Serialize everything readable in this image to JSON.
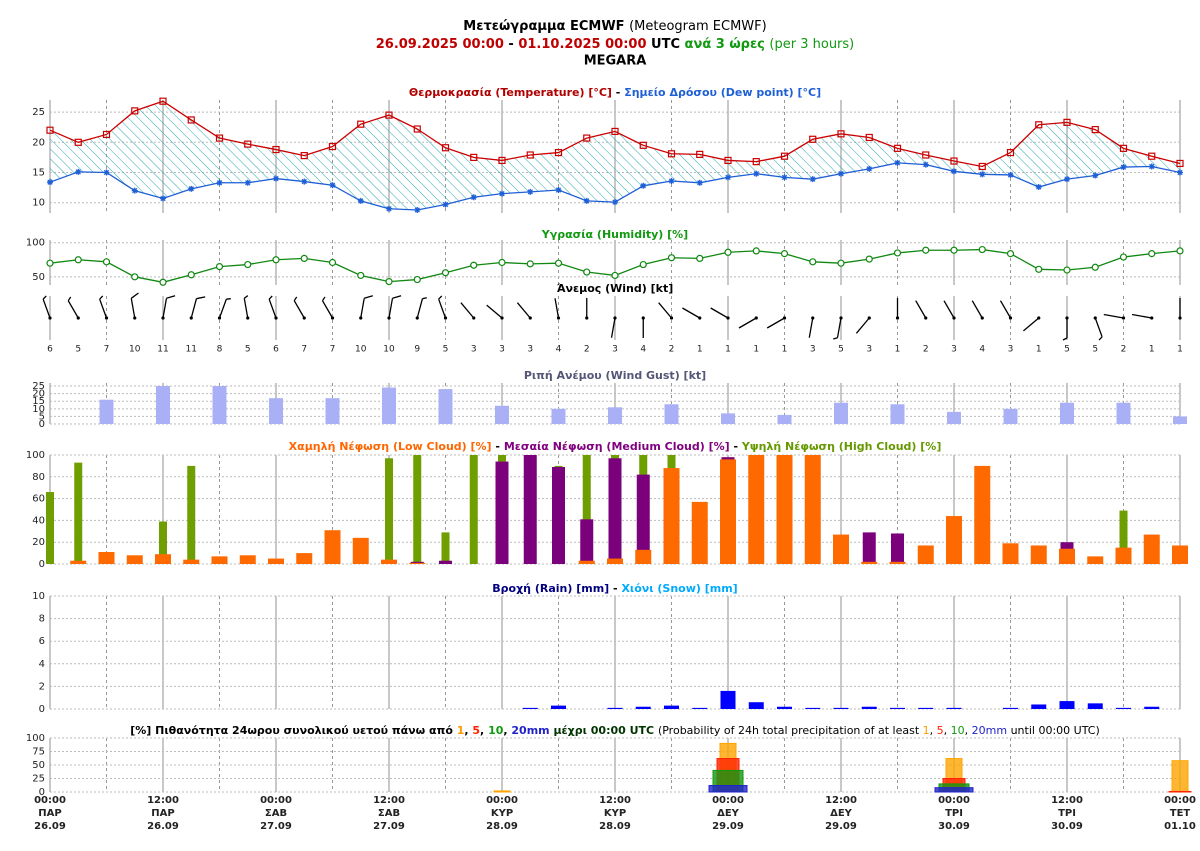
{
  "header": {
    "title_parts": [
      {
        "text": "Μετεώγραμμα ECMWF ",
        "color": "#000000",
        "bold": true
      },
      {
        "text": "(Meteogram ECMWF)",
        "color": "#000000",
        "bold": false
      }
    ],
    "line2_parts": [
      {
        "text": "26.09.2025 00:00",
        "color": "#c00000",
        "bold": true
      },
      {
        "text": " - ",
        "color": "#000000",
        "bold": true
      },
      {
        "text": "01.10.2025 00:00",
        "color": "#c00000",
        "bold": true
      },
      {
        "text": " UTC ",
        "color": "#000000",
        "bold": true
      },
      {
        "text": "ανά 3 ώρες ",
        "color": "#119911",
        "bold": true
      },
      {
        "text": "(per 3 hours)",
        "color": "#119911",
        "bold": false
      }
    ],
    "location": "MEGARA"
  },
  "time": {
    "x": [
      0,
      3,
      6,
      9,
      12,
      15,
      18,
      21,
      24,
      27,
      30,
      33,
      36,
      39,
      42,
      45,
      48,
      51,
      54,
      57,
      60,
      63,
      66,
      69,
      72,
      75,
      78,
      81,
      84,
      87,
      90,
      93,
      96,
      99,
      102,
      105,
      108,
      111,
      114,
      117,
      120
    ],
    "xlim": [
      0,
      120
    ],
    "xticks": [
      {
        "value": 0,
        "label": [
          "00:00",
          "ΠΑΡ",
          "26.09"
        ]
      },
      {
        "value": 12,
        "label": [
          "12:00",
          "ΠΑΡ",
          "26.09"
        ]
      },
      {
        "value": 24,
        "label": [
          "00:00",
          "ΣΑΒ",
          "27.09"
        ]
      },
      {
        "value": 36,
        "label": [
          "12:00",
          "ΣΑΒ",
          "27.09"
        ]
      },
      {
        "value": 48,
        "label": [
          "00:00",
          "ΚΥΡ",
          "28.09"
        ]
      },
      {
        "value": 60,
        "label": [
          "12:00",
          "ΚΥΡ",
          "28.09"
        ]
      },
      {
        "value": 72,
        "label": [
          "00:00",
          "ΔΕΥ",
          "29.09"
        ]
      },
      {
        "value": 84,
        "label": [
          "12:00",
          "ΔΕΥ",
          "29.09"
        ]
      },
      {
        "value": 96,
        "label": [
          "00:00",
          "ΤΡΙ",
          "30.09"
        ]
      },
      {
        "value": 108,
        "label": [
          "12:00",
          "ΤΡΙ",
          "30.09"
        ]
      },
      {
        "value": 120,
        "label": [
          "00:00",
          "ΤΕΤ",
          "01.10"
        ]
      }
    ]
  },
  "chart_data": [
    {
      "type": "line",
      "title_parts": [
        {
          "text": "Θερμοκρασία (Temperature) [°C]",
          "color": "#b00000",
          "bold": true
        },
        {
          "text": " - ",
          "color": "#000000",
          "bold": true
        },
        {
          "text": "Σημείο Δρόσου (Dew point) [°C]",
          "color": "#1f5fd6",
          "bold": true
        }
      ],
      "ylim": [
        8.3,
        27
      ],
      "yticks": [
        10,
        15,
        20,
        25
      ],
      "fill_between": true,
      "fill_color": "#2aa8b0",
      "series": [
        {
          "color": "#cc0000",
          "marker": "square",
          "values": [
            22,
            20,
            21.3,
            25.2,
            26.8,
            23.7,
            20.7,
            19.7,
            18.8,
            17.8,
            19.3,
            23,
            24.5,
            22.2,
            19.1,
            17.5,
            17,
            17.9,
            18.3,
            20.7,
            21.8,
            19.5,
            18.1,
            18,
            17,
            16.8,
            17.7,
            20.5,
            21.4,
            20.8,
            19,
            17.9,
            16.9,
            16,
            18.3,
            22.9,
            23.3,
            22.1,
            19,
            17.7,
            16.5
          ]
        },
        {
          "color": "#1f5fd6",
          "marker": "star",
          "values": [
            13.4,
            15.1,
            15,
            12,
            10.7,
            12.3,
            13.3,
            13.3,
            14,
            13.5,
            12.9,
            10.3,
            9,
            8.8,
            9.7,
            10.9,
            11.5,
            11.8,
            12.1,
            10.3,
            10.1,
            12.8,
            13.6,
            13.3,
            14.2,
            14.8,
            14.2,
            13.9,
            14.8,
            15.6,
            16.6,
            16.3,
            15.2,
            14.7,
            14.6,
            12.6,
            13.9,
            14.5,
            15.9,
            16,
            15
          ]
        }
      ]
    },
    {
      "type": "line",
      "title_parts": [
        {
          "text": "Υγρασία (Humidity) [%]",
          "color": "#119911",
          "bold": true
        }
      ],
      "ylim": [
        38,
        104
      ],
      "yticks": [
        50,
        100
      ],
      "series": [
        {
          "color": "#118811",
          "marker": "circle",
          "values": [
            70,
            75,
            72,
            50,
            42,
            53,
            65,
            68,
            75,
            77,
            71,
            52,
            43,
            46,
            56,
            67,
            71,
            69,
            70,
            57,
            52,
            68,
            78,
            77,
            86,
            88,
            84,
            72,
            70,
            76,
            85,
            89,
            89,
            90,
            84,
            61,
            60,
            64,
            79,
            84,
            88
          ]
        }
      ]
    },
    {
      "type": "wind_barbs",
      "title_parts": [
        {
          "text": "Άνεμος (Wind) [kt]",
          "color": "#000000",
          "bold": true
        }
      ],
      "color": "#000000",
      "values": [
        6,
        5,
        7,
        10,
        11,
        11,
        8,
        5,
        6,
        7,
        7,
        10,
        10,
        9,
        5,
        3,
        3,
        3,
        4,
        2,
        3,
        4,
        2,
        1,
        1,
        1,
        1,
        3,
        5,
        3,
        1,
        2,
        3,
        4,
        3,
        1,
        5,
        5,
        2,
        1,
        1
      ],
      "directions": [
        340,
        330,
        340,
        350,
        10,
        15,
        20,
        350,
        340,
        330,
        330,
        10,
        10,
        15,
        340,
        320,
        310,
        320,
        350,
        0,
        190,
        180,
        320,
        300,
        300,
        240,
        240,
        190,
        190,
        220,
        0,
        330,
        330,
        330,
        330,
        230,
        180,
        160,
        280,
        280,
        0
      ]
    },
    {
      "type": "bar",
      "title_parts": [
        {
          "text": "Ριπή Ανέμου (Wind Gust) [kt]",
          "color": "#555577",
          "bold": true
        }
      ],
      "color": "#aab0f5",
      "ylim": [
        0,
        27
      ],
      "yticks": [
        0,
        5,
        10,
        15,
        20,
        25
      ],
      "x": [
        6,
        12,
        18,
        24,
        30,
        36,
        42,
        48,
        54,
        60,
        66,
        72,
        78,
        84,
        90,
        96,
        102,
        108,
        114,
        120
      ],
      "values": [
        16,
        25,
        25,
        17,
        17,
        24,
        23,
        12,
        10,
        11,
        13,
        7,
        6,
        14,
        13,
        8,
        10,
        14,
        14,
        5
      ]
    },
    {
      "type": "overlap_bar",
      "title_parts": [
        {
          "text": "Χαμηλή Νέφωση (Low Cloud) [%]",
          "color": "#ff6600",
          "bold": true
        },
        {
          "text": " - ",
          "color": "#000000",
          "bold": true
        },
        {
          "text": "Μεσαία Νέφωση (Medium Cloud) [%]",
          "color": "#800080",
          "bold": true
        },
        {
          "text": " - ",
          "color": "#000000",
          "bold": true
        },
        {
          "text": "Υψηλή Νέφωση (High Cloud) [%]",
          "color": "#669900",
          "bold": true
        }
      ],
      "ylim": [
        0,
        100
      ],
      "yticks": [
        0,
        20,
        40,
        60,
        80,
        100
      ],
      "series": [
        {
          "color": "#6e9e00",
          "values": [
            66,
            93,
            0,
            0,
            39,
            90,
            0,
            0,
            0,
            0,
            0,
            0,
            97,
            100,
            29,
            100,
            100,
            0,
            90,
            100,
            100,
            100,
            100,
            0,
            0,
            0,
            0,
            0,
            0,
            0,
            0,
            0,
            0,
            0,
            0,
            0,
            0,
            0,
            49,
            0,
            0
          ]
        },
        {
          "color": "#7b007b",
          "values": [
            0,
            0,
            0,
            0,
            0,
            0,
            0,
            0,
            0,
            0,
            0,
            0,
            0,
            2,
            3,
            0,
            94,
            100,
            89,
            41,
            97,
            82,
            0,
            0,
            98,
            0,
            0,
            0,
            0,
            29,
            28,
            0,
            0,
            0,
            0,
            0,
            20,
            0,
            0,
            0,
            0
          ]
        },
        {
          "color": "#ff6a00",
          "values": [
            0,
            3,
            11,
            8,
            9,
            4,
            7,
            8,
            5,
            10,
            31,
            24,
            4,
            1,
            0,
            0,
            0,
            0,
            0,
            3,
            5,
            13,
            88,
            57,
            96,
            100,
            100,
            100,
            27,
            2,
            2,
            17,
            44,
            90,
            19,
            17,
            14,
            7,
            15,
            27,
            17
          ]
        }
      ]
    },
    {
      "type": "bar",
      "title_parts": [
        {
          "text": "Βροχή (Rain) [mm]",
          "color": "#000080",
          "bold": true
        },
        {
          "text": " - ",
          "color": "#000000",
          "bold": true
        },
        {
          "text": "Χιόνι (Snow) [mm]",
          "color": "#00aaff",
          "bold": true
        }
      ],
      "color": "#0000ff",
      "ylim": [
        0,
        10
      ],
      "yticks": [
        0,
        2,
        4,
        6,
        8,
        10
      ],
      "values": [
        0,
        0,
        0,
        0,
        0,
        0,
        0,
        0,
        0,
        0,
        0,
        0,
        0,
        0,
        0,
        0,
        0,
        0.1,
        0.3,
        0,
        0.1,
        0.2,
        0.3,
        0.1,
        1.6,
        0.6,
        0.2,
        0.1,
        0.1,
        0.2,
        0.1,
        0.1,
        0.1,
        0,
        0.1,
        0.4,
        0.7,
        0.5,
        0.1,
        0.2,
        0
      ]
    },
    {
      "type": "prob_boxes",
      "title_parts": [
        {
          "text": "[%] Πιθανότητα 24ωρου συνολικού υετού πάνω από ",
          "color": "#000000",
          "bold": true
        },
        {
          "text": "1",
          "color": "#ff9900",
          "bold": true
        },
        {
          "text": ", ",
          "color": "#000000",
          "bold": true
        },
        {
          "text": "5",
          "color": "#ff2200",
          "bold": true
        },
        {
          "text": ", ",
          "color": "#000000",
          "bold": true
        },
        {
          "text": "10",
          "color": "#119911",
          "bold": true
        },
        {
          "text": ", ",
          "color": "#000000",
          "bold": true
        },
        {
          "text": "20mm",
          "color": "#2222cc",
          "bold": true
        },
        {
          "text": " μέχρι 00:00 UTC ",
          "color": "#003300",
          "bold": true
        },
        {
          "text": "(Probability of 24h total precipitation of at least ",
          "color": "#000000",
          "bold": false
        },
        {
          "text": "1",
          "color": "#ff9900",
          "bold": false
        },
        {
          "text": ", ",
          "color": "#000000",
          "bold": false
        },
        {
          "text": "5",
          "color": "#ff2200",
          "bold": false
        },
        {
          "text": ", ",
          "color": "#000000",
          "bold": false
        },
        {
          "text": "10",
          "color": "#119911",
          "bold": false
        },
        {
          "text": ", ",
          "color": "#000000",
          "bold": false
        },
        {
          "text": "20mm",
          "color": "#2222cc",
          "bold": false
        },
        {
          "text": " until 00:00 UTC)",
          "color": "#000000",
          "bold": false
        }
      ],
      "ylim": [
        0,
        100
      ],
      "yticks": [
        0,
        25,
        50,
        75,
        100
      ],
      "x": [
        0,
        24,
        48,
        72,
        96,
        120
      ],
      "series": [
        {
          "color": "#ffa500",
          "values": [
            0,
            0,
            2,
            90,
            62,
            58
          ]
        },
        {
          "color": "#ff2200",
          "values": [
            0,
            0,
            0,
            62,
            25,
            1
          ]
        },
        {
          "color": "#119911",
          "values": [
            0,
            0,
            0,
            40,
            15,
            0
          ]
        },
        {
          "color": "#2222cc",
          "values": [
            0,
            0,
            0,
            12,
            8,
            0
          ]
        }
      ]
    }
  ]
}
